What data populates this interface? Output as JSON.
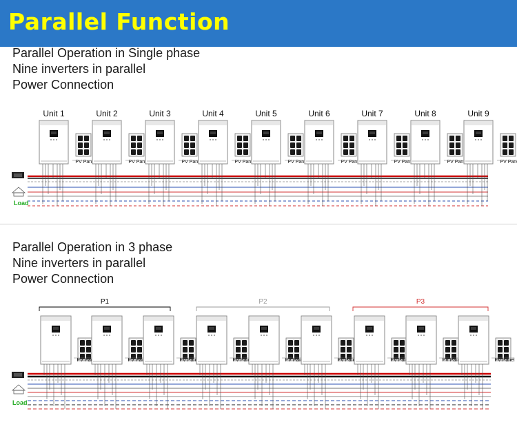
{
  "banner": {
    "title": "Parallel Function"
  },
  "section1": {
    "lines": [
      "Parallel Operation in Single phase",
      "Nine inverters in parallel",
      "Power Connection"
    ],
    "units": [
      "Unit 1",
      "Unit 2",
      "Unit 3",
      "Unit 4",
      "Unit 5",
      "Unit 6",
      "Unit 7",
      "Unit 8",
      "Unit 9"
    ],
    "pv_label": "PV Panel",
    "load_label": "Load"
  },
  "section2": {
    "lines": [
      "Parallel Operation in 3 phase",
      "Nine inverters in parallel",
      "Power Connection"
    ],
    "groups": [
      "P1",
      "P2",
      "P3"
    ],
    "pv_label": "PV Panel",
    "load_label": "Load"
  },
  "colors": {
    "banner": "#2b78c7",
    "title": "#ffff00",
    "p1": "#000000",
    "p2": "#999999",
    "p3": "#d33030",
    "load": "#22aa22",
    "red_bus": "#cc0000",
    "blue_line": "#2a4fb0"
  }
}
